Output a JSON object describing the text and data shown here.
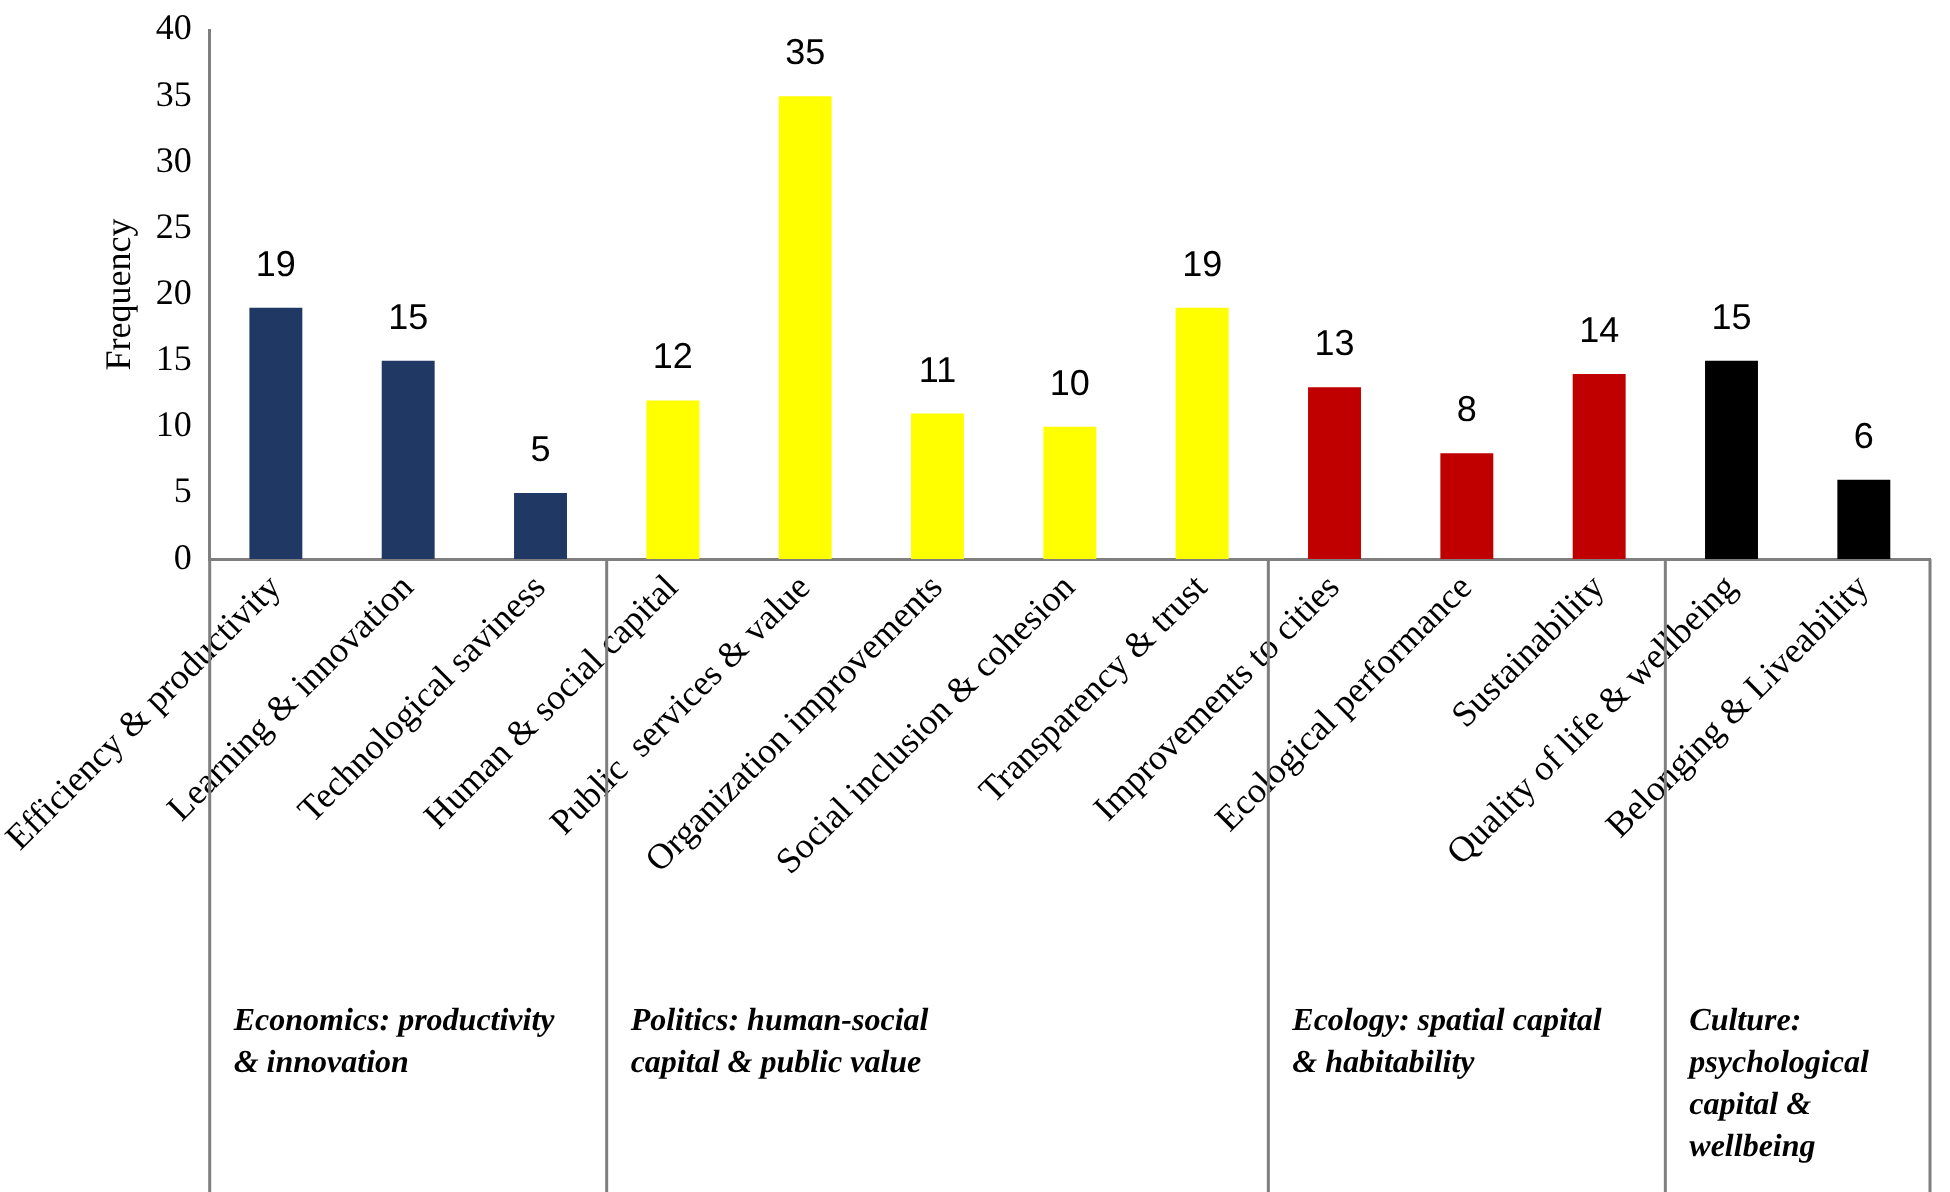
{
  "chart_data": {
    "type": "bar",
    "ylabel": "Frequency",
    "categories": [
      "Efficiency & productivity",
      "Learning & innovation",
      "Technological saviness",
      "Human & social capital",
      "Public  services & value",
      "Organization improvements",
      "Social inclusion & cohesion",
      "Transparency & trust",
      "Improvements to cities",
      "Ecological performance",
      "Sustainability",
      "Quality of life & wellbeing",
      "Belonging & Liveability"
    ],
    "values": [
      19,
      15,
      5,
      12,
      35,
      11,
      10,
      19,
      13,
      8,
      14,
      15,
      6
    ],
    "colors": [
      "#1f3864",
      "#1f3864",
      "#1f3864",
      "#ffff00",
      "#ffff00",
      "#ffff00",
      "#ffff00",
      "#ffff00",
      "#c00000",
      "#c00000",
      "#c00000",
      "#000000",
      "#000000"
    ],
    "ylim": [
      0,
      40
    ],
    "yticks": [
      0,
      5,
      10,
      15,
      20,
      25,
      30,
      35,
      40
    ],
    "grid": false,
    "legend": false,
    "data_labels": true,
    "annotations": [
      "Economics: productivity & innovation",
      "Politics: human-social capital & public value",
      "Ecology: spatial capital & habitability",
      "Culture: psychological capital & wellbeing"
    ]
  }
}
